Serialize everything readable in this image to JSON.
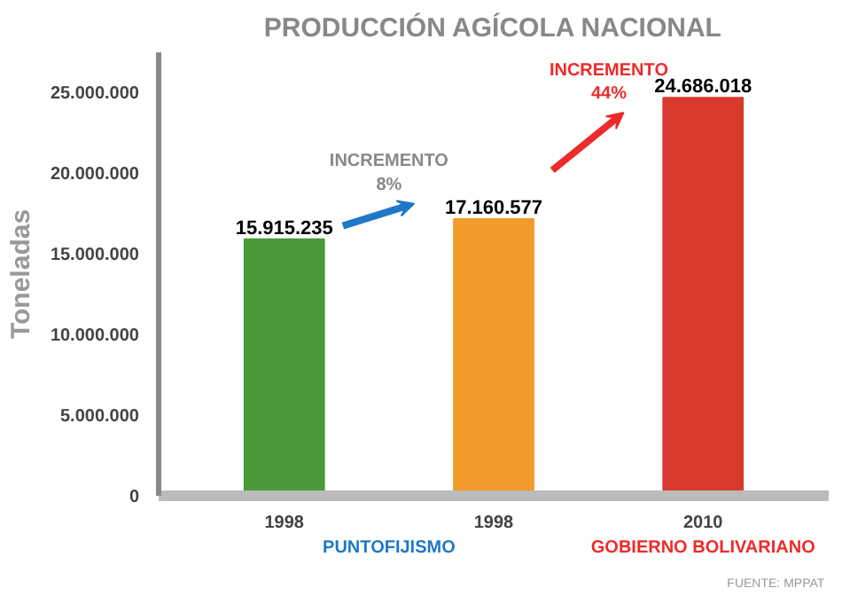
{
  "chart_data": {
    "type": "bar",
    "title": "PRODUCCIÓN AGÍCOLA NACIONAL",
    "ylabel": "Toneladas",
    "categories": [
      "1998",
      "1998",
      "2010"
    ],
    "values": [
      15915235,
      17160577,
      24686018
    ],
    "value_labels": [
      "15.915.235",
      "17.160.577",
      "24.686.018"
    ],
    "colors": [
      "#4a9a3a",
      "#f29a2a",
      "#d83a2e"
    ],
    "ylim": [
      0,
      27500000
    ],
    "yticks": [
      {
        "value": 0,
        "label": "0"
      },
      {
        "value": 5000000,
        "label": "5.000.000"
      },
      {
        "value": 10000000,
        "label": "10.000.000"
      },
      {
        "value": 15000000,
        "label": "15.000.000"
      },
      {
        "value": 20000000,
        "label": "20.000.000"
      },
      {
        "value": 25000000,
        "label": "25.000.000"
      }
    ],
    "grid": false,
    "annotations": [
      "INCREMENTO\n8%",
      "INCREMENTO\n44%",
      "PUNTOFIJISMO",
      "GOBIERNO BOLIVARIANO",
      "FUENTE: MPPAT"
    ]
  }
}
